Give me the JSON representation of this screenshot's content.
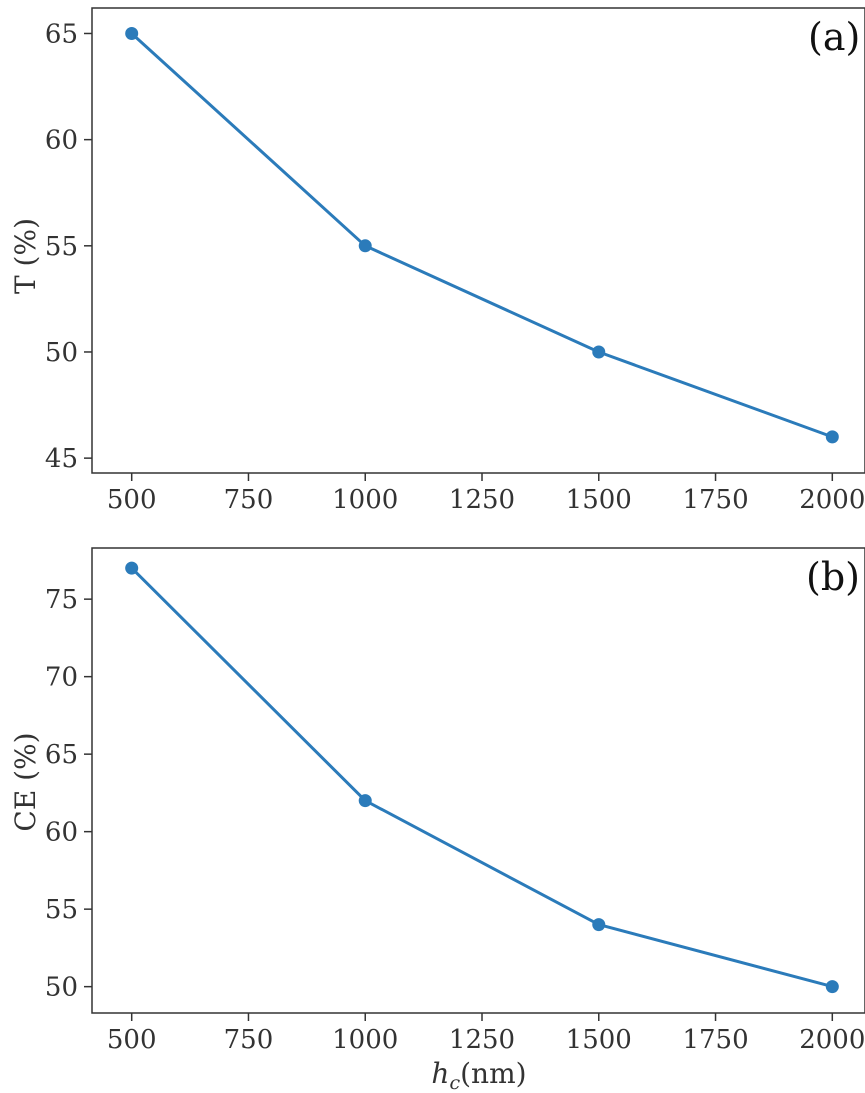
{
  "colors": {
    "series": "#2b7bba",
    "frame": "#333333",
    "background": "#ffffff"
  },
  "chart_data": [
    {
      "type": "line",
      "panel_label": "(a)",
      "xlabel": "",
      "ylabel": "T (%)",
      "x": [
        500,
        1000,
        1500,
        2000
      ],
      "series": [
        {
          "values": [
            65,
            55,
            50,
            46
          ]
        }
      ],
      "xlim": [
        415,
        2070
      ],
      "ylim": [
        44.3,
        66.2
      ],
      "xticks": [
        500,
        750,
        1000,
        1250,
        1500,
        1750,
        2000
      ],
      "yticks": [
        45,
        50,
        55,
        60,
        65
      ],
      "grid": false,
      "markers": "circle"
    },
    {
      "type": "line",
      "panel_label": "(b)",
      "xlabel": "hc(nm)",
      "xlabel_main": "h",
      "xlabel_sub": "c",
      "xlabel_unit": "(nm)",
      "ylabel": "CE (%)",
      "x": [
        500,
        1000,
        1500,
        2000
      ],
      "series": [
        {
          "values": [
            77,
            62,
            54,
            50
          ]
        }
      ],
      "xlim": [
        415,
        2070
      ],
      "ylim": [
        48.3,
        78.3
      ],
      "xticks": [
        500,
        750,
        1000,
        1250,
        1500,
        1750,
        2000
      ],
      "yticks": [
        50,
        55,
        60,
        65,
        70,
        75
      ],
      "grid": false,
      "markers": "circle"
    }
  ]
}
